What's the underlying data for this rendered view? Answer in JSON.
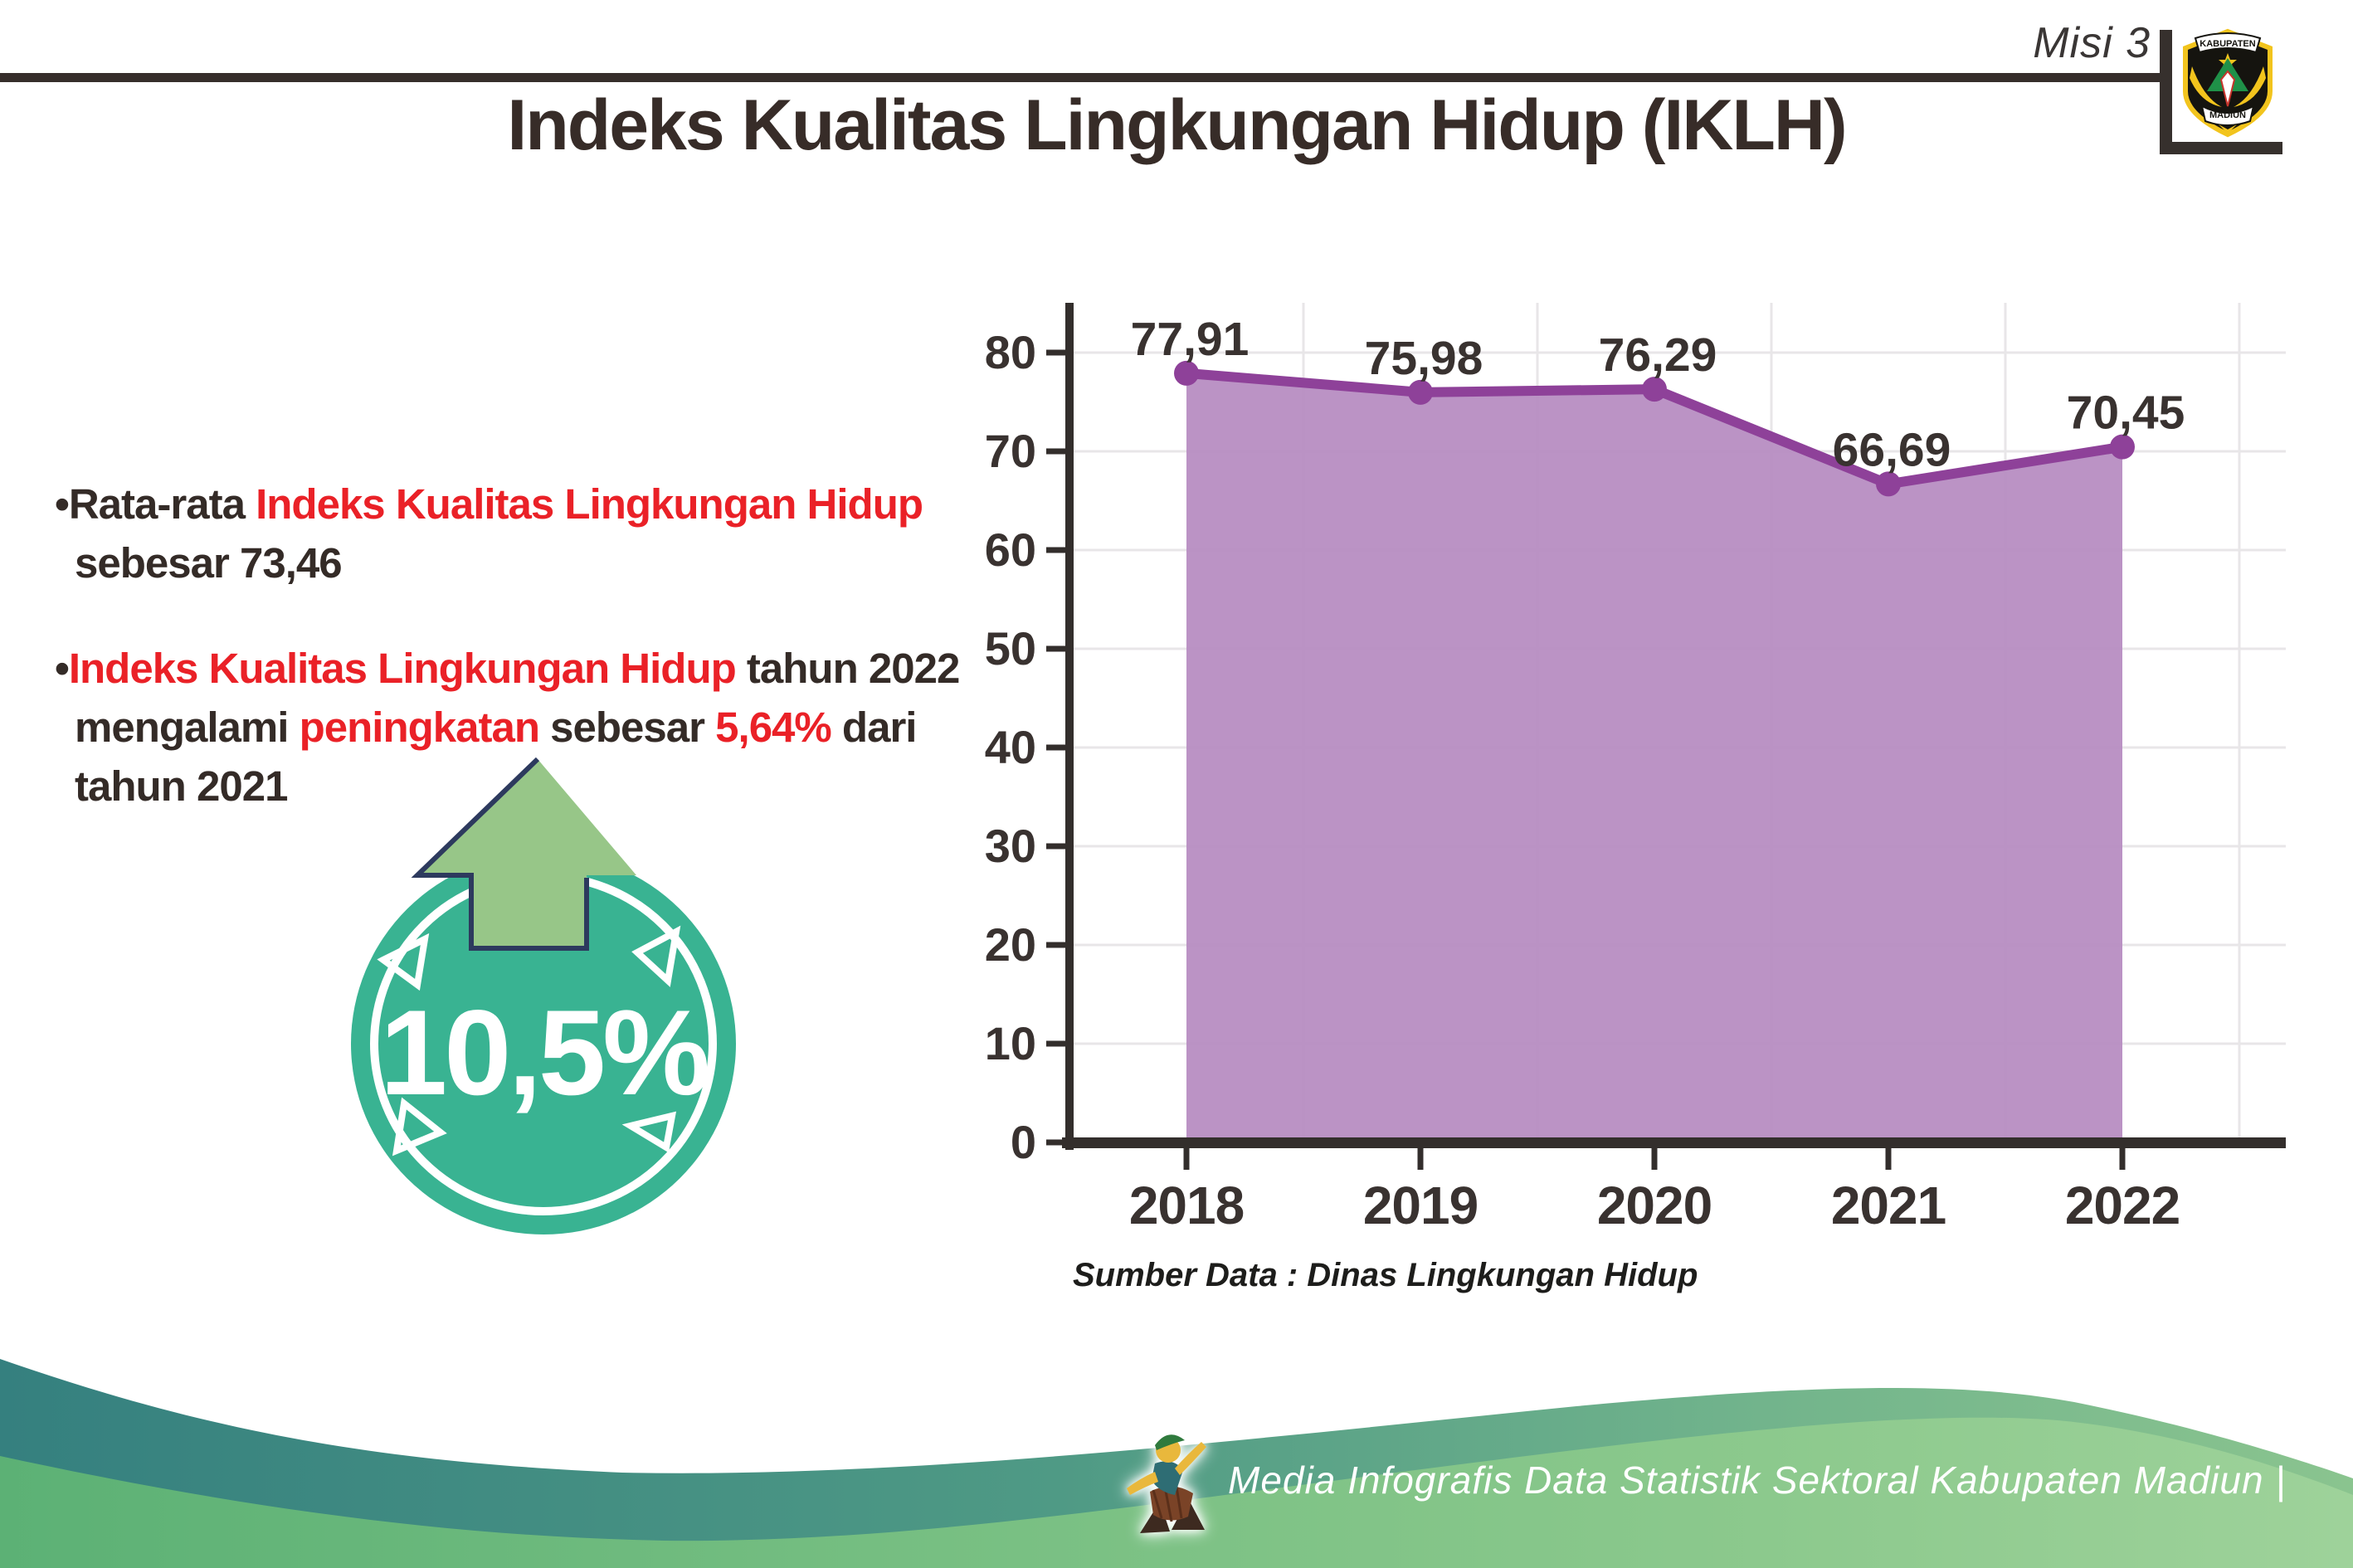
{
  "header": {
    "misi": "Misi 3",
    "title": "Indeks Kualitas Lingkungan Hidup (IKLH)",
    "logo": {
      "top": "KABUPATEN",
      "bottom": "MADIUN"
    }
  },
  "bullets": [
    {
      "lines": [
        {
          "indent": false,
          "segs": [
            {
              "text": "•Rata-rata ",
              "color": "dark"
            },
            {
              "text": "Indeks Kualitas Lingkungan Hidup",
              "color": "red"
            }
          ]
        },
        {
          "indent": true,
          "segs": [
            {
              "text": "sebesar 73,46",
              "color": "dark"
            }
          ]
        }
      ]
    },
    {
      "lines": [
        {
          "indent": false,
          "segs": [
            {
              "text": "•",
              "color": "dark"
            },
            {
              "text": "Indeks Kualitas Lingkungan Hidup",
              "color": "red"
            },
            {
              "text": " tahun 2022",
              "color": "dark"
            }
          ]
        },
        {
          "indent": true,
          "segs": [
            {
              "text": "mengalami ",
              "color": "dark"
            },
            {
              "text": "peningkatan",
              "color": "red"
            },
            {
              "text": " sebesar ",
              "color": "dark"
            },
            {
              "text": "5,64%",
              "color": "red"
            },
            {
              "text": " dari",
              "color": "dark"
            }
          ]
        },
        {
          "indent": true,
          "segs": [
            {
              "text": "tahun 2021",
              "color": "dark"
            }
          ]
        }
      ]
    }
  ],
  "badge": {
    "value": "10,5%"
  },
  "chart_data": {
    "type": "area",
    "title": "",
    "xlabel": "",
    "ylabel": "",
    "categories": [
      "2018",
      "2019",
      "2020",
      "2021",
      "2022"
    ],
    "series": [
      {
        "name": "IKLH",
        "values": [
          77.91,
          75.98,
          76.29,
          66.69,
          70.45
        ]
      }
    ],
    "value_labels": [
      "77,91",
      "75,98",
      "76,29",
      "66,69",
      "70,45"
    ],
    "yticks": [
      0,
      10,
      20,
      30,
      40,
      50,
      60,
      70,
      80
    ],
    "ylim": [
      0,
      85
    ],
    "grid": true,
    "legend": "none",
    "source_note": "Sumber Data : Dinas Lingkungan Hidup"
  },
  "footer": {
    "text": "Media Infografis Data Statistik Sektoral Kabupaten Madiun |"
  },
  "colors": {
    "accent_red": "#ea2127",
    "text_dark": "#342b27",
    "axis": "#332e2c",
    "gridline": "#e8e6e8",
    "chart_line": "#8e4199",
    "chart_fill": "#b78dc2",
    "chart_label": "#393230",
    "badge_teal": "#39b392",
    "arrow_green": "#97c688",
    "arrow_outline": "#2d3a5e",
    "footer_teal": "#35807f",
    "footer_green": "#6fbc7e"
  }
}
